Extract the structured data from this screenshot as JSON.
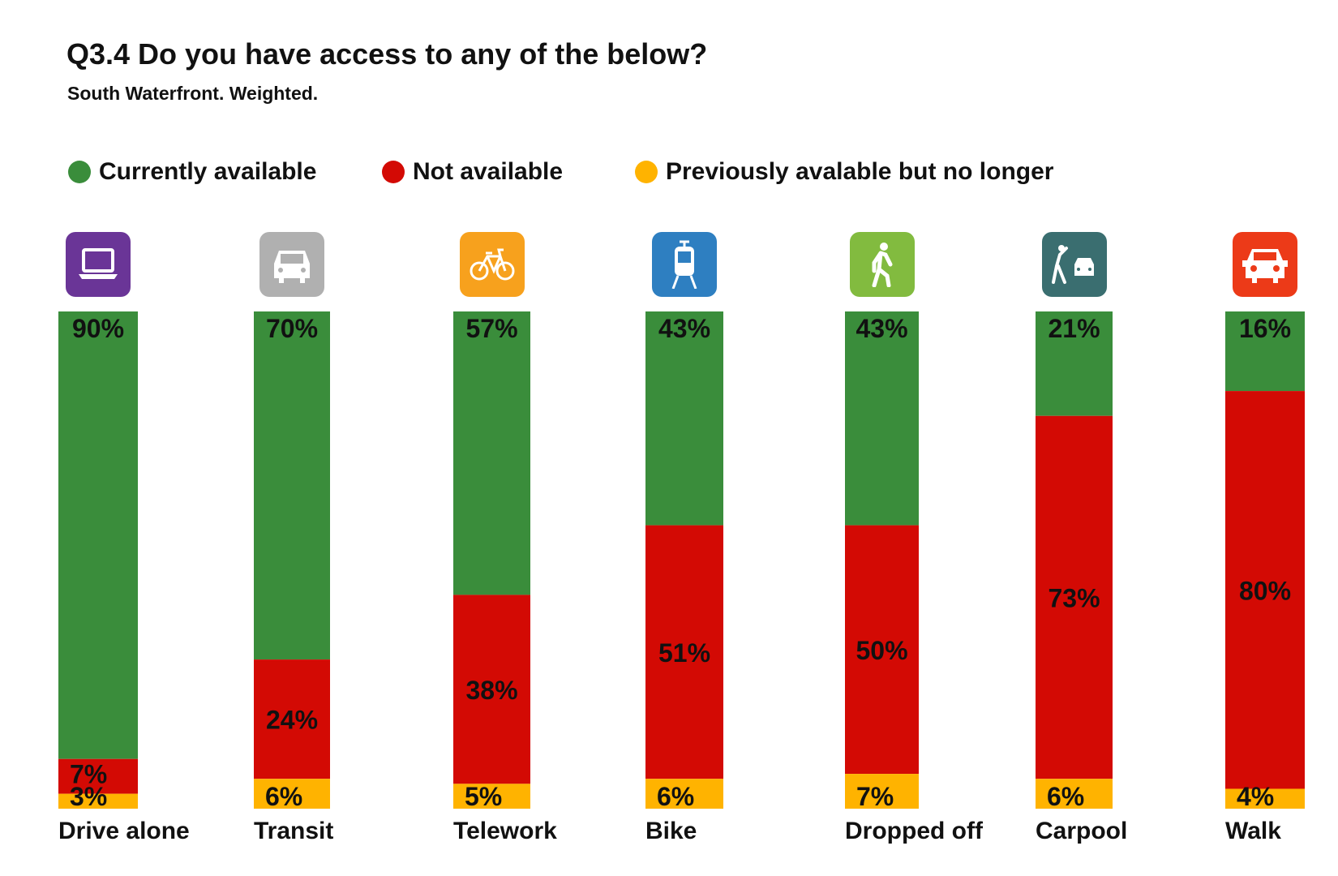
{
  "chart_data": {
    "type": "bar",
    "stacked": true,
    "title": "Q3.4 Do you have access to any of the below?",
    "subtitle": "South Waterfront. Weighted.",
    "categories": [
      "Drive alone",
      "Transit",
      "Telework",
      "Bike",
      "Dropped off",
      "Carpool",
      "Walk"
    ],
    "icons": [
      "laptop-icon",
      "car-icon",
      "bicycle-icon",
      "tram-icon",
      "pedestrian-icon",
      "carpool-icon",
      "car-front-icon"
    ],
    "icon_colors": [
      "#6a3597",
      "#b0b0b0",
      "#f7a11d",
      "#2e7fc1",
      "#82bb3f",
      "#3a6e70",
      "#ec3a18"
    ],
    "series": [
      {
        "name": "Currently available",
        "color": "#3a8d3b",
        "values": [
          90,
          70,
          57,
          43,
          43,
          21,
          16
        ]
      },
      {
        "name": "Not available",
        "color": "#d30a04",
        "values": [
          7,
          24,
          38,
          51,
          50,
          73,
          80
        ]
      },
      {
        "name": "Previously avalable but no longer",
        "color": "#ffb300",
        "values": [
          3,
          6,
          5,
          6,
          7,
          6,
          4
        ]
      }
    ],
    "value_suffix": "%",
    "ylim": [
      0,
      100
    ],
    "legend_position": "top"
  }
}
